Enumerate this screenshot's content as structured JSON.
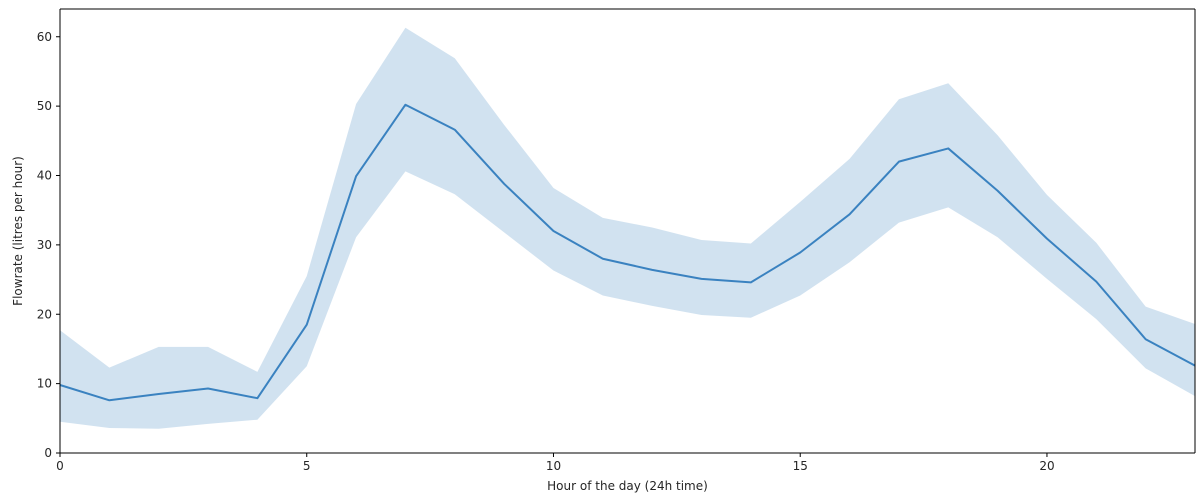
{
  "chart_data": {
    "type": "line",
    "title": "",
    "xlabel": "Hour of the day (24h time)",
    "ylabel": "Flowrate (litres per hour)",
    "xlim": [
      0,
      23
    ],
    "ylim": [
      0,
      64
    ],
    "xticks": [
      0,
      5,
      10,
      15,
      20
    ],
    "yticks": [
      0,
      10,
      20,
      30,
      40,
      50,
      60
    ],
    "grid": false,
    "legend": "none",
    "colors": {
      "line": "#3a82c0",
      "band": "#3a82c0"
    },
    "series": [
      {
        "x": [
          0,
          1,
          2,
          3,
          4,
          5,
          6,
          7,
          8,
          9,
          10,
          11,
          12,
          13,
          14,
          15,
          16,
          17,
          18,
          19,
          20,
          21,
          22,
          23
        ],
        "y": [
          9.8,
          7.6,
          8.5,
          9.3,
          7.9,
          18.5,
          39.9,
          50.2,
          46.6,
          38.8,
          32.0,
          28.0,
          26.4,
          25.1,
          24.6,
          28.9,
          34.4,
          42.0,
          43.9,
          37.8,
          30.9,
          24.7,
          16.4,
          12.6
        ],
        "ci_low": [
          4.5,
          3.6,
          3.5,
          4.2,
          4.8,
          12.5,
          31.1,
          40.6,
          37.3,
          31.8,
          26.3,
          22.7,
          21.2,
          19.9,
          19.5,
          22.7,
          27.5,
          33.2,
          35.4,
          31.1,
          25.1,
          19.3,
          12.2,
          8.2
        ],
        "ci_high": [
          17.7,
          12.3,
          15.3,
          15.3,
          11.7,
          25.5,
          50.3,
          61.3,
          56.9,
          47.3,
          38.2,
          33.9,
          32.5,
          30.7,
          30.2,
          36.2,
          42.4,
          51.0,
          53.3,
          45.8,
          37.2,
          30.3,
          21.1,
          18.6
        ]
      }
    ]
  }
}
